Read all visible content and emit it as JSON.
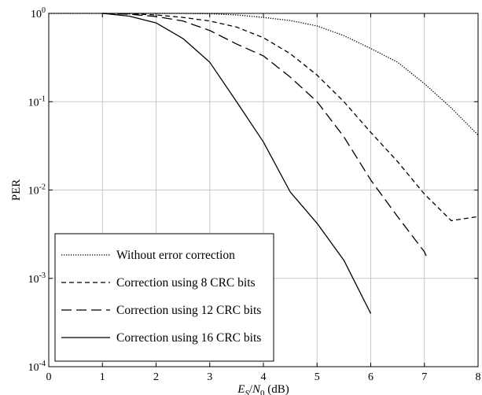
{
  "chart_data": {
    "type": "line",
    "xlabel": {
      "italic_main": "E",
      "sub1": "S",
      "mid": "/",
      "italic_main2": "N",
      "sub2": "0",
      "rest": " (dB)"
    },
    "ylabel": "PER",
    "xlim": [
      0,
      8
    ],
    "ylim": [
      0.0001,
      1
    ],
    "y_scale": "log",
    "grid": true,
    "legend_position": "bottom-left",
    "x_ticks": [
      "0",
      "1",
      "2",
      "3",
      "4",
      "5",
      "6",
      "7",
      "8"
    ],
    "y_ticks": [
      {
        "base": "10",
        "exp": "0",
        "value": 1
      },
      {
        "base": "10",
        "exp": "-1",
        "value": 0.1
      },
      {
        "base": "10",
        "exp": "-2",
        "value": 0.01
      },
      {
        "base": "10",
        "exp": "-3",
        "value": 0.001
      },
      {
        "base": "10",
        "exp": "-4",
        "value": 0.0001
      }
    ],
    "series": [
      {
        "name": "Without error correction",
        "dash": "dotted",
        "x": [
          0,
          1,
          1.5,
          2,
          2.5,
          3,
          3.5,
          4,
          4.5,
          5,
          5.5,
          6,
          6.5,
          7,
          7.5,
          8
        ],
        "y": [
          1,
          1,
          1,
          1,
          1,
          0.99,
          0.96,
          0.9,
          0.83,
          0.72,
          0.56,
          0.4,
          0.28,
          0.16,
          0.085,
          0.042
        ]
      },
      {
        "name": "Correction using 8 CRC bits",
        "dash": "dashed-short",
        "x": [
          1,
          1.5,
          2,
          2.5,
          3,
          3.5,
          4,
          4.5,
          5,
          5.5,
          6,
          6.5,
          7,
          7.5,
          8
        ],
        "y": [
          1,
          0.99,
          0.96,
          0.9,
          0.82,
          0.7,
          0.53,
          0.35,
          0.2,
          0.1,
          0.045,
          0.021,
          0.009,
          0.0045,
          0.005
        ]
      },
      {
        "name": "Correction using 12 CRC bits",
        "dash": "dashed-long",
        "x": [
          1,
          1.5,
          2,
          2.5,
          3,
          3.5,
          4,
          4.5,
          5,
          5.5,
          6,
          6.5,
          7,
          7.05
        ],
        "y": [
          1,
          0.98,
          0.92,
          0.82,
          0.64,
          0.45,
          0.33,
          0.19,
          0.1,
          0.04,
          0.013,
          0.005,
          0.002,
          0.0017
        ]
      },
      {
        "name": "Correction using 16 CRC bits",
        "dash": "solid",
        "x": [
          1,
          1.5,
          2,
          2.5,
          3,
          3.5,
          4,
          4.5,
          5,
          5.5,
          6
        ],
        "y": [
          1,
          0.93,
          0.78,
          0.52,
          0.28,
          0.1,
          0.035,
          0.0095,
          0.0042,
          0.0016,
          0.0004
        ]
      }
    ]
  }
}
